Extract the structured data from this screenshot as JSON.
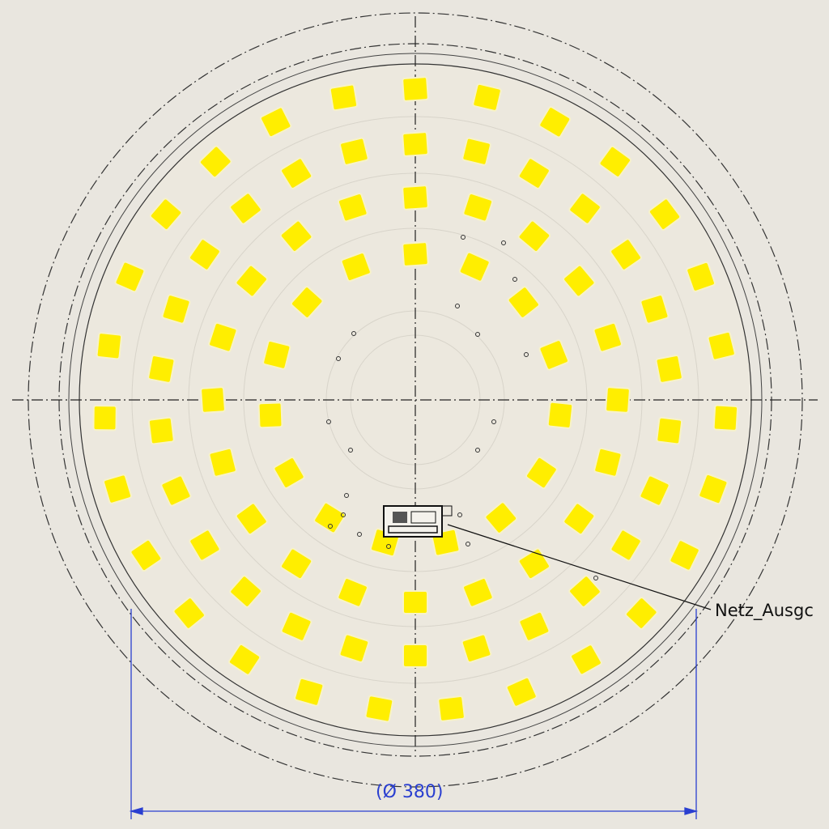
{
  "drawing": {
    "callout_label": "Netz_Ausgc",
    "dimension_label": "(Ø 380)"
  },
  "colors": {
    "background": "#e9e6df",
    "board": "#ece8de",
    "led": "#ffee00",
    "dimension": "#2a3fd0",
    "line": "#222222"
  }
}
